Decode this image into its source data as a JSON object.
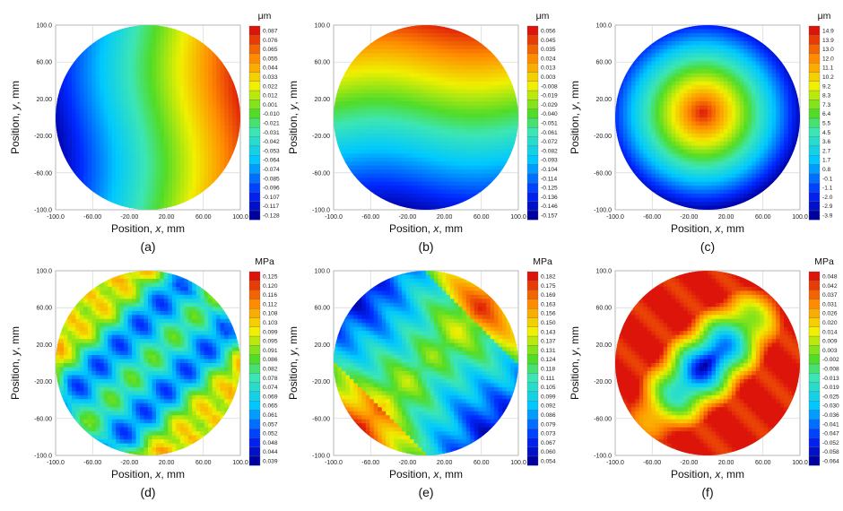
{
  "panels": [
    {
      "caption": "(a)",
      "unit": "μm",
      "xlabel": [
        "Position, ",
        "x",
        ", mm"
      ],
      "ylabel": [
        "Position, ",
        "y",
        ", mm"
      ],
      "xticks": [
        "-100.0",
        "-60.00",
        "-20.00",
        "20.00",
        "60.00",
        "100.0"
      ],
      "yticks": [
        "100.0",
        "60.00",
        "20.00",
        "-20.00",
        "-60.00",
        "-100.0"
      ],
      "colorbar_labels": [
        "0.087",
        "0.076",
        "0.065",
        "0.055",
        "0.044",
        "0.033",
        "0.022",
        "0.012",
        "0.001",
        "-0.010",
        "-0.021",
        "-0.031",
        "-0.042",
        "-0.053",
        "-0.064",
        "-0.074",
        "-0.085",
        "-0.096",
        "-0.107",
        "-0.117",
        "-0.128"
      ],
      "field": "tilt_x"
    },
    {
      "caption": "(b)",
      "unit": "μm",
      "xlabel": [
        "Position, ",
        "x",
        ", mm"
      ],
      "ylabel": [
        "Position, ",
        "y",
        ", mm"
      ],
      "xticks": [
        "-100.0",
        "-60.00",
        "-20.00",
        "20.00",
        "60.00",
        "100.0"
      ],
      "yticks": [
        "100.0",
        "60.00",
        "20.00",
        "-20.00",
        "-60.00",
        "-100.0"
      ],
      "colorbar_labels": [
        "0.056",
        "0.045",
        "0.035",
        "0.024",
        "0.013",
        "0.003",
        "-0.008",
        "-0.019",
        "-0.029",
        "-0.040",
        "-0.051",
        "-0.061",
        "-0.072",
        "-0.082",
        "-0.093",
        "-0.104",
        "-0.114",
        "-0.125",
        "-0.136",
        "-0.146",
        "-0.157"
      ],
      "field": "tilt_y"
    },
    {
      "caption": "(c)",
      "unit": "μm",
      "xlabel": [
        "Position, ",
        "x",
        ", mm"
      ],
      "ylabel": [
        "Position, ",
        "y",
        ", mm"
      ],
      "xticks": [
        "-100.0",
        "-60.00",
        "-20.00",
        "20.00",
        "60.00",
        "100.0"
      ],
      "yticks": [
        "100.0",
        "60.00",
        "20.00",
        "-20.00",
        "-60.00",
        "-100.0"
      ],
      "colorbar_labels": [
        "14.9",
        "13.9",
        "13.0",
        "12.0",
        "11.1",
        "10.2",
        "9.2",
        "8.3",
        "7.3",
        "6.4",
        "5.5",
        "4.5",
        "3.6",
        "2.7",
        "1.7",
        "0.8",
        "-0.1",
        "-1.1",
        "-2.0",
        "-2.9",
        "-3.9"
      ],
      "field": "bowl"
    },
    {
      "caption": "(d)",
      "unit": "MPa",
      "xlabel": [
        "Position, ",
        "x",
        ", mm"
      ],
      "ylabel": [
        "Position, ",
        "y",
        ", mm"
      ],
      "xticks": [
        "-100.0",
        "-60.00",
        "-20.00",
        "20.00",
        "60.00",
        "100.0"
      ],
      "yticks": [
        "100.0",
        "60.00",
        "20.00",
        "-20.00",
        "-60.00",
        "-100.0"
      ],
      "colorbar_labels": [
        "0.125",
        "0.120",
        "0.116",
        "0.112",
        "0.108",
        "0.103",
        "0.099",
        "0.095",
        "0.091",
        "0.086",
        "0.082",
        "0.078",
        "0.074",
        "0.069",
        "0.065",
        "0.061",
        "0.057",
        "0.052",
        "0.048",
        "0.044",
        "0.039"
      ],
      "field": "stripes_d"
    },
    {
      "caption": "(e)",
      "unit": "MPa",
      "xlabel": [
        "Position, ",
        "x",
        ", mm"
      ],
      "ylabel": [
        "Position, ",
        "y",
        ", mm"
      ],
      "xticks": [
        "-100.0",
        "-60.00",
        "-20.00",
        "20.00",
        "60.00",
        "100.0"
      ],
      "yticks": [
        "100.0",
        "60.00",
        "20.00",
        "-20.00",
        "-60.00",
        "-100.0"
      ],
      "colorbar_labels": [
        "0.182",
        "0.175",
        "0.169",
        "0.163",
        "0.156",
        "0.150",
        "0.143",
        "0.137",
        "0.131",
        "0.124",
        "0.118",
        "0.111",
        "0.105",
        "0.099",
        "0.092",
        "0.086",
        "0.079",
        "0.073",
        "0.067",
        "0.060",
        "0.054"
      ],
      "field": "stripes_e"
    },
    {
      "caption": "(f)",
      "unit": "MPa",
      "xlabel": [
        "Position, ",
        "x",
        ", mm"
      ],
      "ylabel": [
        "Position, ",
        "y",
        ", mm"
      ],
      "xticks": [
        "-100.0",
        "-60.00",
        "-20.00",
        "20.00",
        "60.00",
        "100.0"
      ],
      "yticks": [
        "100.0",
        "60.00",
        "20.00",
        "-20.00",
        "-60.00",
        "-100.0"
      ],
      "colorbar_labels": [
        "0.048",
        "0.042",
        "0.037",
        "0.031",
        "0.026",
        "0.020",
        "0.014",
        "0.009",
        "0.003",
        "-0.002",
        "-0.008",
        "-0.013",
        "-0.019",
        "-0.025",
        "-0.030",
        "-0.036",
        "-0.041",
        "-0.047",
        "-0.052",
        "-0.058",
        "-0.064"
      ],
      "field": "ellipse_low"
    }
  ],
  "chart_data": [
    {
      "type": "heatmap",
      "title": "(a)",
      "xlabel": "Position, x, mm",
      "ylabel": "Position, y, mm",
      "xlim": [
        -100,
        100
      ],
      "ylim": [
        -100,
        100
      ],
      "colorbar_unit": "μm",
      "colorbar_range": [
        -0.128,
        0.087
      ],
      "pattern": "gradient increasing left to right"
    },
    {
      "type": "heatmap",
      "title": "(b)",
      "xlabel": "Position, x, mm",
      "ylabel": "Position, y, mm",
      "xlim": [
        -100,
        100
      ],
      "ylim": [
        -100,
        100
      ],
      "colorbar_unit": "μm",
      "colorbar_range": [
        -0.157,
        0.056
      ],
      "pattern": "gradient increasing bottom to top"
    },
    {
      "type": "heatmap",
      "title": "(c)",
      "xlabel": "Position, x, mm",
      "ylabel": "Position, y, mm",
      "xlim": [
        -100,
        100
      ],
      "ylim": [
        -100,
        100
      ],
      "colorbar_unit": "μm",
      "colorbar_range": [
        -3.9,
        14.9
      ],
      "pattern": "radial maximum at center, minimum at edge"
    },
    {
      "type": "heatmap",
      "title": "(d)",
      "xlabel": "Position, x, mm",
      "ylabel": "Position, y, mm",
      "xlim": [
        -100,
        100
      ],
      "ylim": [
        -100,
        100
      ],
      "colorbar_unit": "MPa",
      "colorbar_range": [
        0.039,
        0.125
      ],
      "pattern": "diagonal stripes, high at upper-right and lower-left edges"
    },
    {
      "type": "heatmap",
      "title": "(e)",
      "xlabel": "Position, x, mm",
      "ylabel": "Position, y, mm",
      "xlim": [
        -100,
        100
      ],
      "ylim": [
        -100,
        100
      ],
      "colorbar_unit": "MPa",
      "colorbar_range": [
        0.054,
        0.182
      ],
      "pattern": "diagonal band, low at top-left and bottom-right, high at left and right edges"
    },
    {
      "type": "heatmap",
      "title": "(f)",
      "xlabel": "Position, x, mm",
      "ylabel": "Position, y, mm",
      "xlim": [
        -100,
        100
      ],
      "ylim": [
        -100,
        100
      ],
      "colorbar_unit": "MPa",
      "colorbar_range": [
        -0.064,
        0.048
      ],
      "pattern": "diagonal elliptical minimum at center, high at rim"
    }
  ]
}
